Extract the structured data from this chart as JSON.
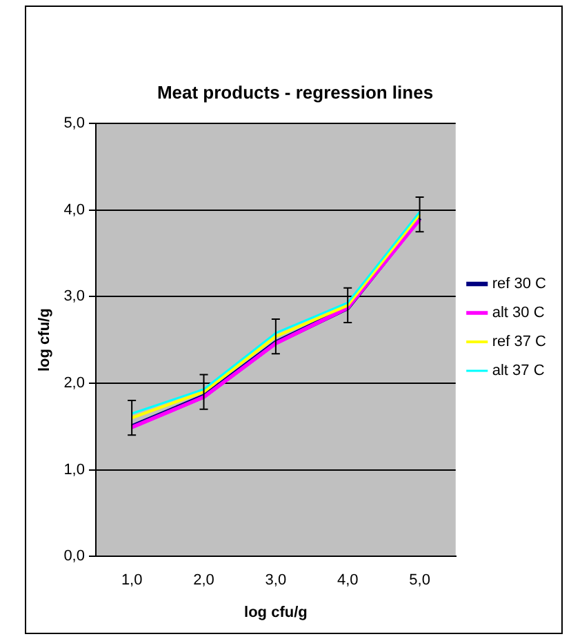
{
  "chart_data": {
    "type": "line",
    "title": "Meat products - regression lines",
    "xlabel": "log cfu/g",
    "ylabel": "log cfu/g",
    "categories": [
      "1,0",
      "2,0",
      "3,0",
      "4,0",
      "5,0"
    ],
    "series": [
      {
        "name": "ref 30 C",
        "color": "#000080",
        "values": [
          1.5,
          1.85,
          2.47,
          2.87,
          3.91
        ]
      },
      {
        "name": "alt 30 C",
        "color": "#ff00ff",
        "values": [
          1.49,
          1.84,
          2.46,
          2.87,
          3.89
        ]
      },
      {
        "name": "ref 37 C",
        "color": "#ffff00",
        "values": [
          1.6,
          1.9,
          2.54,
          2.9,
          3.95
        ],
        "errors": [
          0.2,
          0.2,
          0.2,
          0.2,
          0.2
        ]
      },
      {
        "name": "alt 37 C",
        "color": "#00ffff",
        "values": [
          1.65,
          1.93,
          2.58,
          2.93,
          3.98
        ]
      }
    ],
    "ylim": [
      0,
      5
    ],
    "yticks": [
      {
        "value": 0,
        "label": "0,0"
      },
      {
        "value": 1,
        "label": "1,0"
      },
      {
        "value": 2,
        "label": "2,0"
      },
      {
        "value": 3,
        "label": "3,0"
      },
      {
        "value": 4,
        "label": "4,0"
      },
      {
        "value": 5,
        "label": "5,0"
      }
    ],
    "grid": "y",
    "legend": "right",
    "marker": "none",
    "line_style": "solid"
  }
}
